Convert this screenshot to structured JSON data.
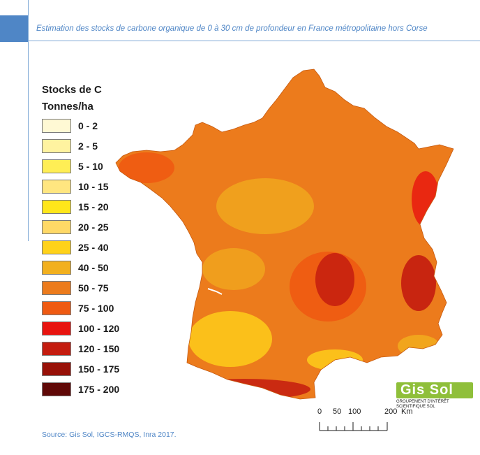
{
  "title": "Estimation des stocks de carbone organique de 0 à 30 cm de profondeur en France métropolitaine hors Corse",
  "legend": {
    "title": "Stocks de C",
    "unit": "Tonnes/ha",
    "items": [
      {
        "label": "0 - 2",
        "color": "#fff9d4"
      },
      {
        "label": "2 - 5",
        "color": "#fff3a0"
      },
      {
        "label": "5 - 10",
        "color": "#ffee55"
      },
      {
        "label": "10 - 15",
        "color": "#ffe680"
      },
      {
        "label": "15 - 20",
        "color": "#ffe61a"
      },
      {
        "label": "20 - 25",
        "color": "#ffd966"
      },
      {
        "label": "25 - 40",
        "color": "#ffd21a"
      },
      {
        "label": "40 - 50",
        "color": "#f2b01e"
      },
      {
        "label": "50 - 75",
        "color": "#ec7b1c"
      },
      {
        "label": "75 - 100",
        "color": "#ef5a12"
      },
      {
        "label": "100 - 120",
        "color": "#e8140f"
      },
      {
        "label": "120 - 150",
        "color": "#c41c0f"
      },
      {
        "label": "150 - 175",
        "color": "#981108"
      },
      {
        "label": "175 - 200",
        "color": "#600807"
      }
    ]
  },
  "scale": {
    "labels": [
      "0",
      "50",
      "100",
      "200"
    ],
    "unit": "Km"
  },
  "logo": {
    "name": "Gis Sol",
    "subtitle": "GROUPEMENT D'INTÉRÊT SCIENTIFIQUE SOL"
  },
  "source": "Source: Gis Sol, IGCS-RMQS, Inra 2017."
}
